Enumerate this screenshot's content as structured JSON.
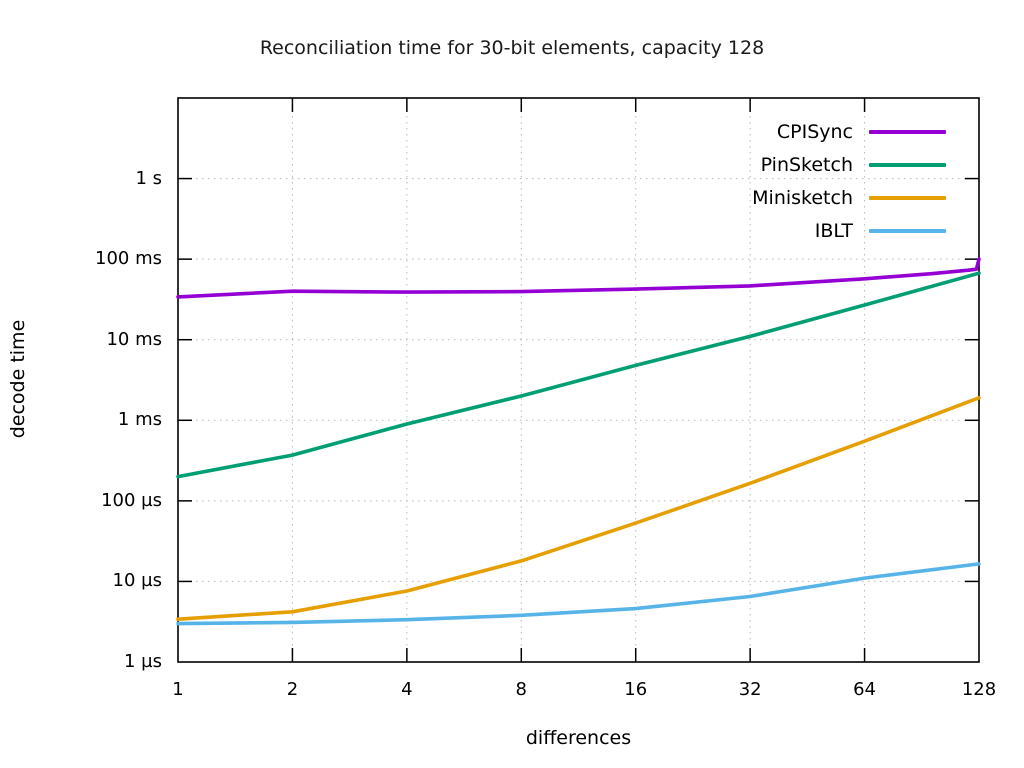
{
  "figure": {
    "background": "#ffffff",
    "text_color": "#1a1a1a",
    "grid_color": "#b8b8b8",
    "border_color": "#000000"
  },
  "chart_data": {
    "type": "line",
    "title": "Reconciliation time for 30-bit elements, capacity 128",
    "xlabel": "differences",
    "ylabel": "decode time",
    "x_scale": "log2",
    "y_scale": "log10",
    "xlim": [
      1,
      128
    ],
    "ylim_microseconds": [
      1,
      10000000
    ],
    "grid": true,
    "legend_position": "top-right-inside",
    "x_ticks": [
      {
        "value": 1,
        "label": "1"
      },
      {
        "value": 2,
        "label": "2"
      },
      {
        "value": 4,
        "label": "4"
      },
      {
        "value": 8,
        "label": "8"
      },
      {
        "value": 16,
        "label": "16"
      },
      {
        "value": 32,
        "label": "32"
      },
      {
        "value": 64,
        "label": "64"
      },
      {
        "value": 128,
        "label": "128"
      }
    ],
    "y_ticks": [
      {
        "value_us": 1,
        "label": "1 µs"
      },
      {
        "value_us": 10,
        "label": "10 µs"
      },
      {
        "value_us": 100,
        "label": "100 µs"
      },
      {
        "value_us": 1000,
        "label": "1 ms"
      },
      {
        "value_us": 10000,
        "label": "10 ms"
      },
      {
        "value_us": 100000,
        "label": "100 ms"
      },
      {
        "value_us": 1000000,
        "label": "1 s"
      }
    ],
    "series": [
      {
        "name": "CPISync",
        "color": "#9400d3",
        "x": [
          1,
          2,
          4,
          8,
          16,
          32,
          64,
          96,
          120,
          126,
          128
        ],
        "y_us": [
          34000,
          40000,
          39000,
          39500,
          42500,
          46500,
          57000,
          66000,
          73000,
          75000,
          100000
        ]
      },
      {
        "name": "PinSketch",
        "color": "#009e73",
        "x": [
          1,
          2,
          4,
          8,
          16,
          32,
          64,
          128
        ],
        "y_us": [
          200,
          370,
          900,
          2000,
          4800,
          11000,
          27000,
          67000
        ]
      },
      {
        "name": "Minisketch",
        "color": "#e69f00",
        "x": [
          1,
          2,
          4,
          8,
          16,
          32,
          64,
          128
        ],
        "y_us": [
          3.4,
          4.2,
          7.6,
          18,
          53,
          165,
          550,
          1900
        ]
      },
      {
        "name": "IBLT",
        "color": "#56b4e9",
        "x": [
          1,
          2,
          4,
          8,
          16,
          32,
          64,
          128
        ],
        "y_us": [
          3.0,
          3.1,
          3.35,
          3.8,
          4.6,
          6.5,
          11,
          16.5
        ]
      }
    ]
  }
}
